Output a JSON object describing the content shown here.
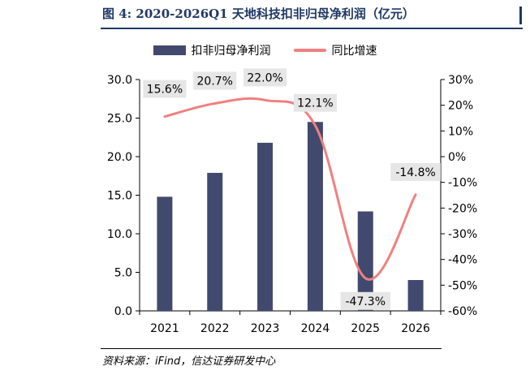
{
  "figure": {
    "title": "图 4:  2020-2026Q1 天地科技扣非归母净利润（亿元）",
    "source": "资料来源：iFind，信达证券研发中心"
  },
  "colors": {
    "bar": "#414a6e",
    "line": "#f08080",
    "title": "#1f3864",
    "label_box": "#e6e6e6"
  },
  "chart_data": {
    "type": "bar",
    "categories": [
      "2021",
      "2022",
      "2023",
      "2024",
      "2025",
      "2026"
    ],
    "series": [
      {
        "name": "扣非归母净利润",
        "type": "bar",
        "axis": "left",
        "values": [
          14.8,
          17.9,
          21.8,
          24.5,
          12.9,
          4.0
        ]
      },
      {
        "name": "同比增速",
        "type": "line",
        "axis": "right",
        "values": [
          15.6,
          20.7,
          22.0,
          12.1,
          -47.3,
          -14.8
        ],
        "labels": [
          "15.6%",
          "20.7%",
          "22.0%",
          "12.1%",
          "-47.3%",
          "-14.8%"
        ]
      }
    ],
    "y_left": {
      "min": 0,
      "max": 30,
      "ticks": [
        "0.0",
        "5.0",
        "10.0",
        "15.0",
        "20.0",
        "25.0",
        "30.0"
      ]
    },
    "y_right": {
      "min": -60,
      "max": 30,
      "ticks": [
        "-60%",
        "-50%",
        "-40%",
        "-30%",
        "-20%",
        "-10%",
        "0%",
        "10%",
        "20%",
        "30%"
      ]
    },
    "legend": "top",
    "grid": false
  }
}
